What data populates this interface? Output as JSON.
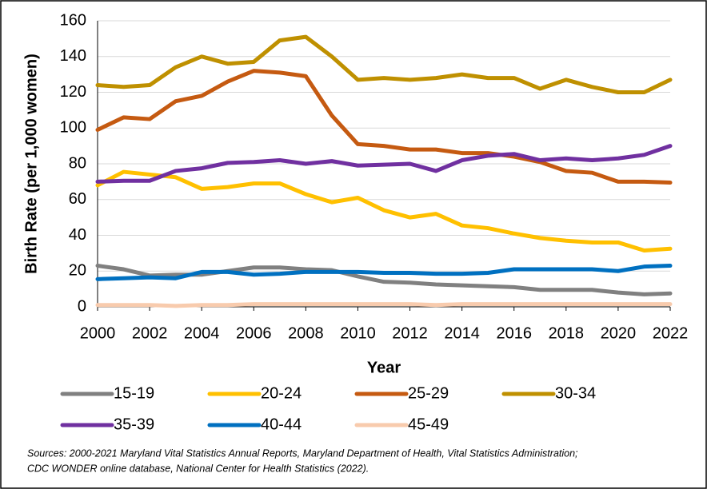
{
  "chart_data": {
    "type": "line",
    "x_label": "Year",
    "y_label": "Birth Rate (per 1,000 women)",
    "x": [
      2000,
      2001,
      2002,
      2003,
      2004,
      2005,
      2006,
      2007,
      2008,
      2009,
      2010,
      2011,
      2012,
      2013,
      2014,
      2015,
      2016,
      2017,
      2018,
      2019,
      2020,
      2021,
      2022
    ],
    "xlim": [
      2000,
      2022
    ],
    "xticks": [
      2000,
      2002,
      2004,
      2006,
      2008,
      2010,
      2012,
      2014,
      2016,
      2018,
      2020,
      2022
    ],
    "ylim": [
      0,
      160
    ],
    "yticks": [
      0,
      20,
      40,
      60,
      80,
      100,
      120,
      140,
      160
    ],
    "grid": true,
    "series": [
      {
        "name": "15-19",
        "color": "#808080",
        "values": [
          23,
          21,
          17.5,
          18,
          18,
          20,
          22,
          22,
          21,
          20.5,
          17,
          14,
          13.5,
          12.5,
          12,
          11.5,
          11,
          9.5,
          9.5,
          9.5,
          8,
          7,
          7.5
        ]
      },
      {
        "name": "20-24",
        "color": "#ffc000",
        "values": [
          68,
          75.5,
          74,
          72.5,
          66,
          67,
          69,
          69,
          63,
          58.5,
          61,
          54,
          50,
          52,
          45.5,
          44,
          41,
          38.5,
          37,
          36,
          36,
          31.5,
          32.5
        ]
      },
      {
        "name": "25-29",
        "color": "#c55a11",
        "values": [
          99,
          106,
          105,
          115,
          118,
          126,
          132,
          131,
          129,
          107,
          91,
          90,
          88,
          88,
          86,
          86,
          84,
          81,
          76,
          75,
          70,
          70,
          69.5
        ]
      },
      {
        "name": "30-34",
        "color": "#bf9000",
        "values": [
          124,
          123,
          124,
          134,
          140,
          136,
          137,
          149,
          151,
          140,
          127,
          128,
          127,
          128,
          130,
          128,
          128,
          122,
          127,
          123,
          120,
          120,
          127
        ]
      },
      {
        "name": "35-39",
        "color": "#7030a0",
        "values": [
          70,
          70.5,
          70.5,
          76,
          77.5,
          80.5,
          81,
          82,
          80,
          81.5,
          79,
          79.5,
          80,
          76,
          82,
          84.5,
          85.5,
          82,
          83,
          82,
          83,
          85,
          90
        ]
      },
      {
        "name": "40-44",
        "color": "#0070c0",
        "values": [
          15.5,
          16,
          16.5,
          16,
          19.5,
          19.5,
          18,
          18.5,
          19.5,
          19.5,
          19.5,
          19,
          19,
          18.5,
          18.5,
          19,
          21,
          21,
          21,
          21,
          20,
          22.5,
          23
        ]
      },
      {
        "name": "45-49",
        "color": "#f8cbad",
        "values": [
          1,
          1,
          1,
          0.5,
          1,
          1,
          1.5,
          1.5,
          1.5,
          1.5,
          1.5,
          1.5,
          1.5,
          1,
          1.5,
          1.5,
          1.5,
          1.5,
          1.5,
          1.5,
          1.5,
          1.5,
          1.5
        ]
      }
    ],
    "source": [
      "Sources: 2000-2021 Maryland Vital Statistics Annual Reports, Maryland Department of Health, Vital Statistics Administration;",
      "CDC WONDER online database, National Center for Health Statistics (2022)."
    ]
  }
}
